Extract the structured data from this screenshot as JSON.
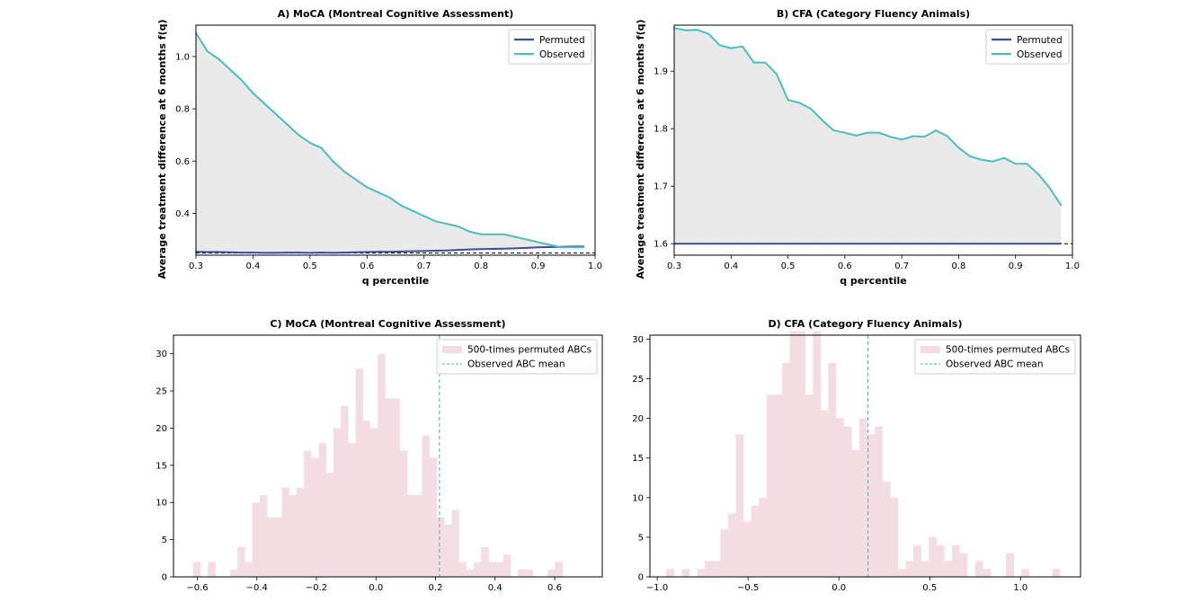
{
  "chart_data": [
    {
      "type": "line",
      "title": "A) MoCA (Montreal Cognitive Assessment)",
      "xlabel": "q percentile",
      "ylabel": "Average treatment difference at 6 months f(q)",
      "xlim": [
        0.3,
        1.0
      ],
      "ylim": [
        0.24,
        1.12
      ],
      "xticks": [
        "0.3",
        "0.4",
        "0.5",
        "0.6",
        "0.7",
        "0.8",
        "0.9",
        "1.0"
      ],
      "yticks": [
        "0.4",
        "0.6",
        "0.8",
        "1.0"
      ],
      "baseline": 0.248,
      "legend_position": "upper right",
      "fill_between": true,
      "colors": {
        "permuted": "#3b4c9a",
        "observed": "#4cbcbc",
        "fill": "#e9e9e9",
        "baseline": "#000000"
      },
      "x": [
        0.3,
        0.32,
        0.34,
        0.36,
        0.38,
        0.4,
        0.42,
        0.44,
        0.46,
        0.48,
        0.5,
        0.52,
        0.54,
        0.56,
        0.58,
        0.6,
        0.62,
        0.64,
        0.66,
        0.68,
        0.7,
        0.72,
        0.74,
        0.76,
        0.78,
        0.8,
        0.82,
        0.84,
        0.86,
        0.88,
        0.9,
        0.92,
        0.94,
        0.96,
        0.98
      ],
      "series": [
        {
          "name": "Permuted",
          "values": [
            0.253,
            0.252,
            0.252,
            0.251,
            0.25,
            0.25,
            0.249,
            0.249,
            0.25,
            0.25,
            0.249,
            0.25,
            0.249,
            0.25,
            0.251,
            0.252,
            0.253,
            0.253,
            0.254,
            0.255,
            0.256,
            0.257,
            0.258,
            0.26,
            0.262,
            0.263,
            0.264,
            0.265,
            0.266,
            0.268,
            0.27,
            0.271,
            0.272,
            0.273,
            0.273
          ]
        },
        {
          "name": "Observed",
          "values": [
            1.09,
            1.02,
            0.99,
            0.95,
            0.91,
            0.86,
            0.82,
            0.78,
            0.74,
            0.7,
            0.67,
            0.65,
            0.6,
            0.56,
            0.53,
            0.5,
            0.48,
            0.46,
            0.43,
            0.41,
            0.39,
            0.37,
            0.36,
            0.35,
            0.33,
            0.32,
            0.32,
            0.32,
            0.31,
            0.3,
            0.29,
            0.28,
            0.27,
            0.27,
            0.27
          ]
        }
      ]
    },
    {
      "type": "line",
      "title": "B) CFA (Category Fluency Animals)",
      "xlabel": "q percentile",
      "ylabel": "Average treatment difference at 6 months f(q)",
      "xlim": [
        0.3,
        1.0
      ],
      "ylim": [
        1.58,
        1.98
      ],
      "xticks": [
        "0.3",
        "0.4",
        "0.5",
        "0.6",
        "0.7",
        "0.8",
        "0.9",
        "1.0"
      ],
      "yticks": [
        "1.6",
        "1.7",
        "1.8",
        "1.9"
      ],
      "baseline": 1.6,
      "legend_position": "upper right",
      "fill_between": true,
      "colors": {
        "permuted": "#3b4c9a",
        "observed": "#4cbcbc",
        "fill": "#e9e9e9",
        "baseline": "#000000"
      },
      "x": [
        0.3,
        0.32,
        0.34,
        0.36,
        0.38,
        0.4,
        0.42,
        0.44,
        0.46,
        0.48,
        0.5,
        0.52,
        0.54,
        0.56,
        0.58,
        0.6,
        0.62,
        0.64,
        0.66,
        0.68,
        0.7,
        0.72,
        0.74,
        0.76,
        0.78,
        0.8,
        0.82,
        0.84,
        0.86,
        0.88,
        0.9,
        0.92,
        0.94,
        0.96,
        0.98
      ],
      "series": [
        {
          "name": "Permuted",
          "values": [
            1.6,
            1.6,
            1.6,
            1.6,
            1.6,
            1.6,
            1.6,
            1.6,
            1.6,
            1.6,
            1.6,
            1.6,
            1.6,
            1.6,
            1.6,
            1.6,
            1.6,
            1.6,
            1.6,
            1.6,
            1.6,
            1.6,
            1.6,
            1.6,
            1.6,
            1.6,
            1.6,
            1.6,
            1.6,
            1.6,
            1.6,
            1.6,
            1.6,
            1.6,
            1.6
          ]
        },
        {
          "name": "Observed",
          "values": [
            1.975,
            1.971,
            1.972,
            1.965,
            1.945,
            1.94,
            1.943,
            1.915,
            1.915,
            1.895,
            1.85,
            1.845,
            1.835,
            1.815,
            1.797,
            1.793,
            1.788,
            1.793,
            1.793,
            1.786,
            1.781,
            1.787,
            1.786,
            1.797,
            1.787,
            1.767,
            1.752,
            1.746,
            1.743,
            1.749,
            1.739,
            1.739,
            1.721,
            1.697,
            1.667
          ]
        }
      ]
    },
    {
      "type": "bar",
      "title": "C) MoCA (Montreal Cognitive Assessment)",
      "xlim": [
        -0.68,
        0.76
      ],
      "ylim": [
        0,
        32.5
      ],
      "xticks": [
        "−0.6",
        "−0.4",
        "−0.2",
        "0.0",
        "0.2",
        "0.4",
        "0.6"
      ],
      "yticks": [
        "0",
        "5",
        "10",
        "15",
        "20",
        "25",
        "30"
      ],
      "bin_start": -0.614,
      "bin_width": 0.0248,
      "counts": [
        2,
        0,
        2,
        0,
        0,
        1,
        4,
        2,
        10,
        11,
        8,
        8,
        12,
        11,
        12,
        17,
        16,
        18,
        14,
        20,
        23,
        18,
        28,
        21,
        20,
        30,
        24,
        24,
        17,
        11,
        11,
        19,
        16,
        8,
        7,
        9,
        2,
        1,
        2,
        4,
        2,
        2,
        3,
        0,
        1,
        1,
        0,
        0,
        1,
        2
      ],
      "observed_mean": 0.213,
      "legend_position": "upper right",
      "colors": {
        "bars": "#f4dce3",
        "observed_line": "#3ab7b7"
      },
      "series": [
        {
          "name": "500-times permuted ABCs"
        },
        {
          "name": "Observed ABC mean"
        }
      ]
    },
    {
      "type": "bar",
      "title": "D) CFA (Category Fluency Animals)",
      "xlim": [
        -1.04,
        1.33
      ],
      "ylim": [
        0,
        30.5
      ],
      "xticks": [
        "−1.0",
        "−0.5",
        "0.0",
        "0.5",
        "1.0"
      ],
      "yticks": [
        "0",
        "5",
        "10",
        "15",
        "20",
        "25",
        "30"
      ],
      "bin_start": -0.95,
      "bin_width": 0.0425,
      "counts": [
        1,
        0,
        1,
        0,
        1,
        2,
        2,
        6,
        8,
        18,
        7,
        9,
        10,
        23,
        23,
        27,
        31,
        31,
        23,
        31,
        21,
        27,
        20,
        19,
        16,
        20,
        18,
        19,
        12,
        10,
        1,
        2,
        4,
        2,
        5,
        4,
        2,
        4,
        3,
        0,
        2,
        1,
        0,
        0,
        3,
        0,
        1,
        0,
        0,
        0,
        1
      ],
      "observed_mean": 0.16,
      "legend_position": "upper right",
      "colors": {
        "bars": "#f4dce3",
        "observed_line": "#3ab7b7"
      },
      "series": [
        {
          "name": "500-times permuted ABCs"
        },
        {
          "name": "Observed ABC mean"
        }
      ]
    }
  ]
}
